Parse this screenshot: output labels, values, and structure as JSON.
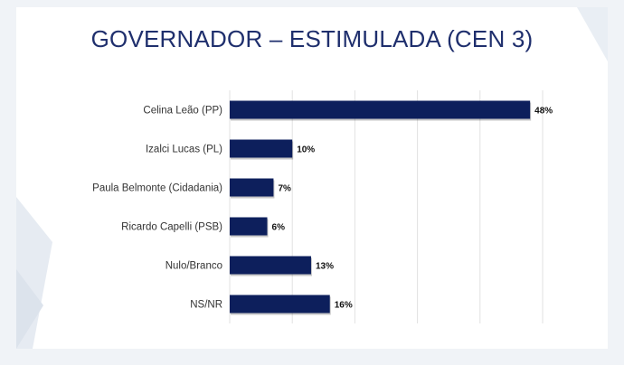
{
  "chart_data": {
    "type": "bar",
    "orientation": "horizontal",
    "title": "GOVERNADOR – ESTIMULADA (CEN 3)",
    "categories": [
      "Celina Leão (PP)",
      "Izalci Lucas (PL)",
      "Paula Belmonte (Cidadania)",
      "Ricardo Capelli (PSB)",
      "Nulo/Branco",
      "NS/NR"
    ],
    "values": [
      48,
      10,
      7,
      6,
      13,
      16
    ],
    "value_labels": [
      "48%",
      "10%",
      "7%",
      "6%",
      "13%",
      "16%"
    ],
    "xlim": [
      0,
      50
    ],
    "grid": true,
    "legend": "none",
    "bar_color": "#0d1f5c"
  }
}
